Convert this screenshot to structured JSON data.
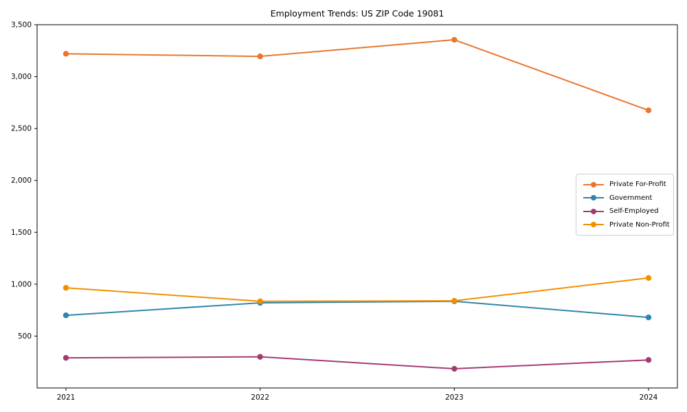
{
  "chart_data": {
    "type": "line",
    "title": "Employment Trends: US ZIP Code 19081",
    "x_labels": [
      "2021",
      "2022",
      "2023",
      "2024"
    ],
    "series": [
      {
        "name": "Private For-Profit",
        "color": "#e8762d",
        "values": [
          3220,
          3195,
          3355,
          2675
        ]
      },
      {
        "name": "Government",
        "color": "#2e86ab",
        "values": [
          700,
          820,
          835,
          680
        ]
      },
      {
        "name": "Self-Employed",
        "color": "#a23b72",
        "values": [
          290,
          300,
          185,
          270
        ]
      },
      {
        "name": "Private Non-Profit",
        "color": "#f18f01",
        "values": [
          965,
          835,
          840,
          1060
        ]
      }
    ],
    "ylim": [
      0,
      3500
    ],
    "yticks": [
      500,
      1000,
      1500,
      2000,
      2500,
      3000,
      3500
    ],
    "ytick_labels": [
      "500",
      "1,000",
      "1,500",
      "2,000",
      "2,500",
      "3,000",
      "3,500"
    ],
    "grid": false,
    "legend_position": "center right",
    "marker": "o",
    "axis_color": "#000000",
    "background_color": "#ffffff"
  }
}
